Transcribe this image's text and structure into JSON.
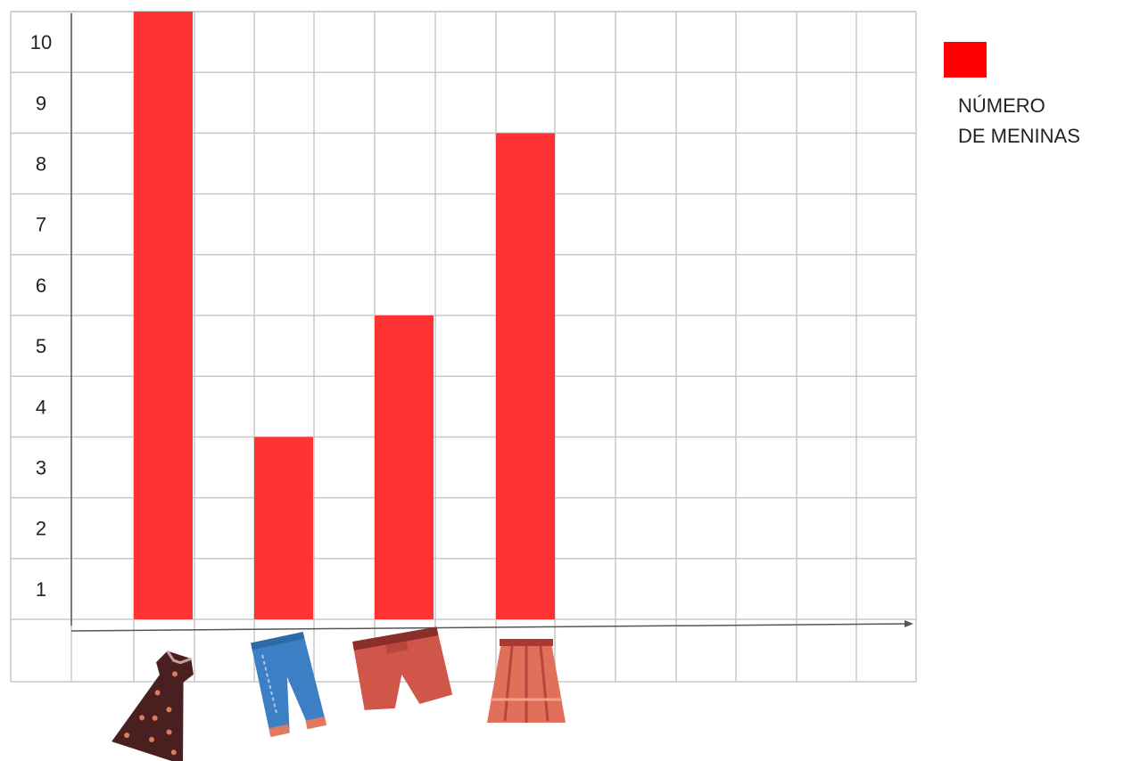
{
  "chart_data": {
    "type": "bar",
    "categories": [
      "dress",
      "jeans",
      "shorts",
      "skirt"
    ],
    "category_display": "icons",
    "series": [
      {
        "name": "NÚMERO DE MENINAS",
        "color": "#ff3333",
        "values": [
          10,
          3,
          5,
          8
        ]
      }
    ],
    "y_ticks": [
      "1",
      "2",
      "3",
      "4",
      "5",
      "6",
      "7",
      "8",
      "9",
      "10"
    ],
    "ylim": [
      0,
      10
    ],
    "grid": true,
    "legend": {
      "placement": "top-right",
      "lines": [
        "NÚMERO",
        "DE MENINAS"
      ],
      "color": "#ff3333"
    },
    "icons": [
      "dress-icon",
      "jeans-icon",
      "shorts-icon",
      "skirt-icon"
    ]
  }
}
